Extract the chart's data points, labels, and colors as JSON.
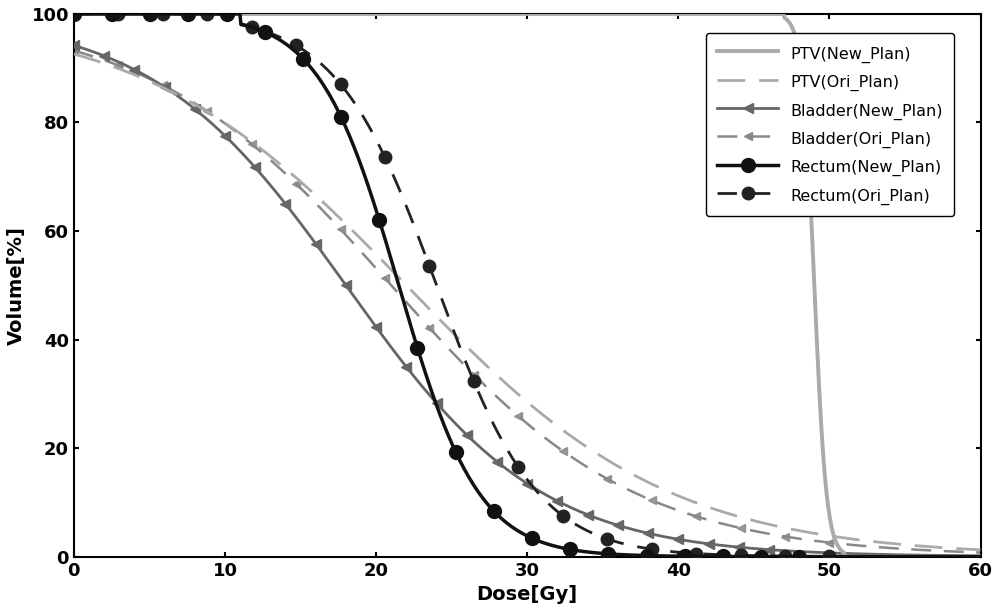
{
  "title": "",
  "xlabel": "Dose[Gy]",
  "ylabel": "Volume[%]",
  "xlim": [
    0,
    60
  ],
  "ylim": [
    0,
    100
  ],
  "xticks": [
    0,
    10,
    20,
    30,
    40,
    50,
    60
  ],
  "yticks": [
    0,
    20,
    40,
    60,
    80,
    100
  ],
  "background_color": "#ffffff",
  "ptv_new_color": "#aaaaaa",
  "ptv_ori_color": "#aaaaaa",
  "bladder_new_color": "#666666",
  "bladder_ori_color": "#888888",
  "rectum_new_color": "#111111",
  "rectum_ori_color": "#222222"
}
